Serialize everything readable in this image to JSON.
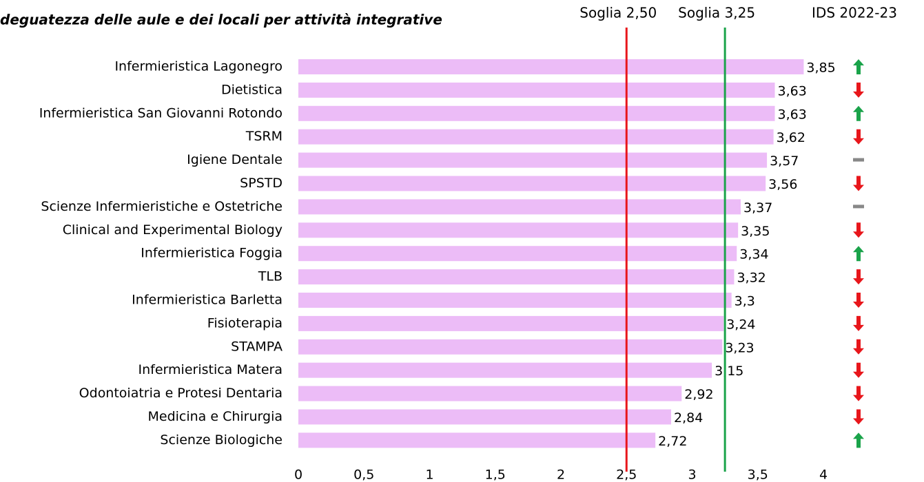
{
  "chart_data": {
    "type": "bar",
    "orientation": "horizontal",
    "title": "deguatezza delle aule e dei locali per attività integrative",
    "categories": [
      "Infermieristica Lagonegro",
      "Dietistica",
      "Infermieristica San Giovanni Rotondo",
      "TSRM",
      "Igiene Dentale",
      "SPSTD",
      "Scienze Infermieristiche e Ostetriche",
      "Clinical and Experimental Biology",
      "Infermieristica Foggia",
      "TLB",
      "Infermieristica Barletta",
      "Fisioterapia",
      "STAMPA",
      "Infermieristica Matera",
      "Odontoiatria e Protesi Dentaria",
      "Medicina e Chirurgia",
      "Scienze Biologiche"
    ],
    "values": [
      3.85,
      3.63,
      3.63,
      3.62,
      3.57,
      3.56,
      3.37,
      3.35,
      3.34,
      3.32,
      3.3,
      3.24,
      3.23,
      3.15,
      2.92,
      2.84,
      2.72
    ],
    "value_labels": [
      "3,85",
      "3,63",
      "3,63",
      "3,62",
      "3,57",
      "3,56",
      "3,37",
      "3,35",
      "3,34",
      "3,32",
      "3,3",
      "3,24",
      "3,23",
      "3,15",
      "2,92",
      "2,84",
      "2,72"
    ],
    "color": "#ecbcf7",
    "xlim": [
      0,
      4
    ],
    "xticks": [
      0,
      {
        "value": 0.5,
        "label": "0,5"
      },
      1,
      {
        "value": 1.5,
        "label": "1,5"
      },
      2,
      {
        "value": 2.5,
        "label": "2,5"
      },
      3,
      {
        "value": 3.5,
        "label": "3,5"
      },
      4
    ],
    "thresholds": [
      {
        "label": "Soglia 2,50",
        "value": 2.5,
        "color": "#e8161b"
      },
      {
        "label": "Soglia 3,25",
        "value": 3.25,
        "color": "#1aa34a"
      }
    ],
    "trend_label": "IDS 2022-23",
    "trend": [
      "up",
      "down",
      "up",
      "down",
      "flat",
      "down",
      "flat",
      "down",
      "up",
      "down",
      "down",
      "down",
      "down",
      "down",
      "down",
      "down",
      "up"
    ],
    "trend_colors": {
      "up": "#1aa34a",
      "down": "#e8161b",
      "flat": "#888888"
    }
  }
}
